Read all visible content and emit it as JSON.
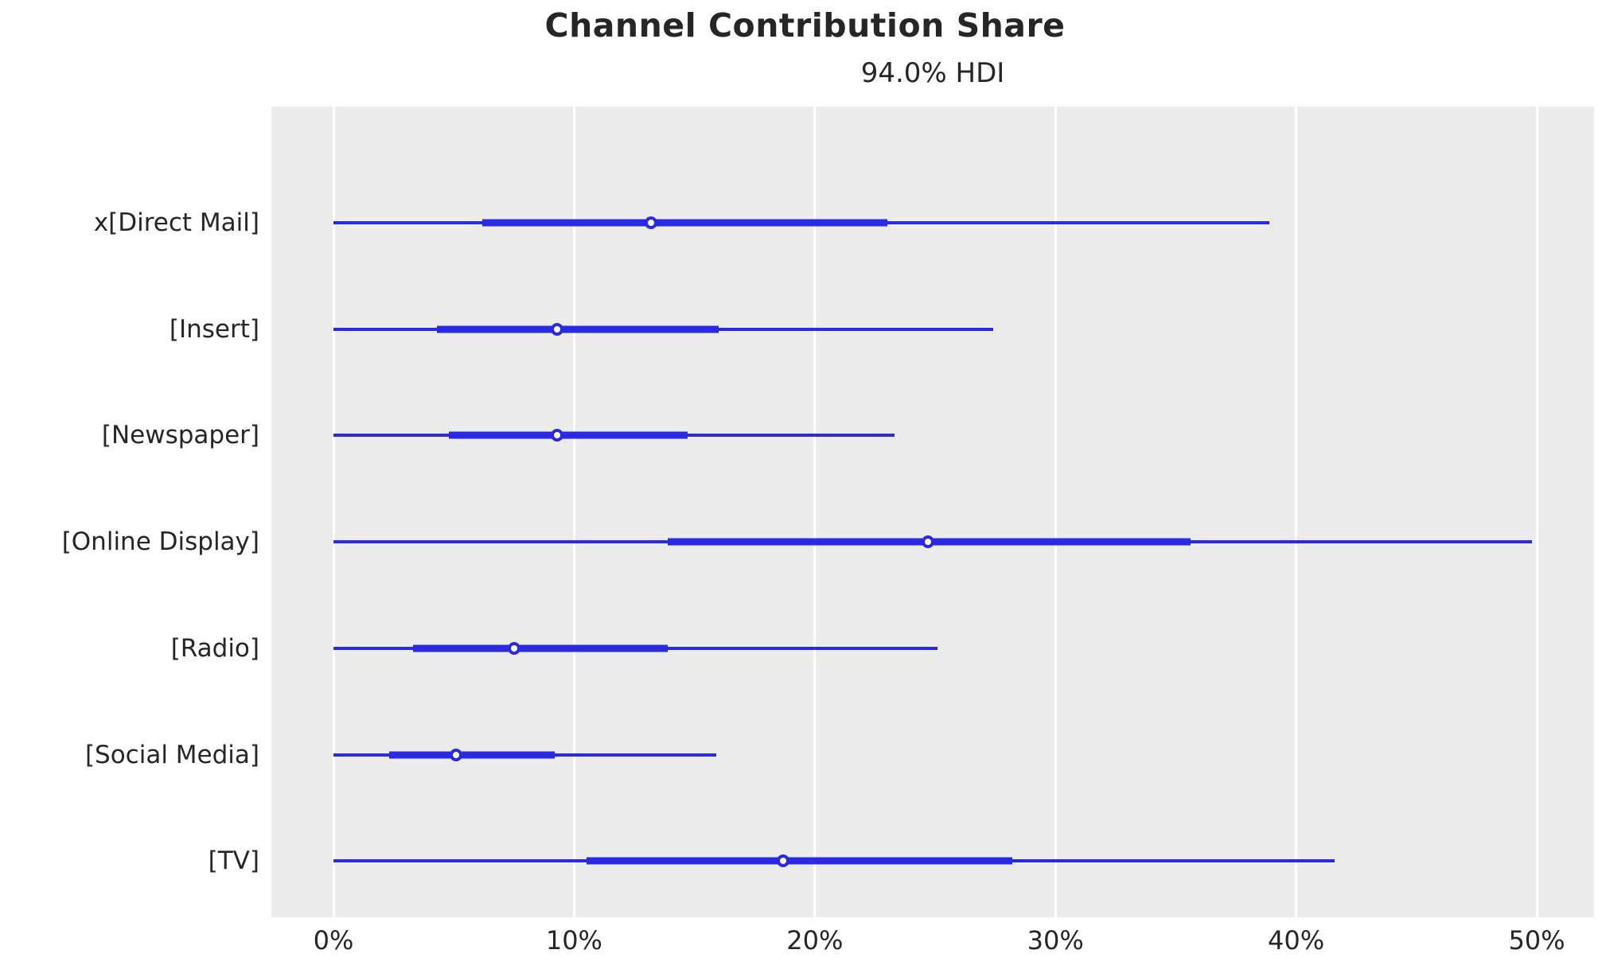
{
  "chart_data": {
    "type": "forest",
    "title": "Channel Contribution Share",
    "subtitle": "94.0% HDI",
    "legend": null,
    "grid": "vertical-white-on-gray",
    "x_axis": {
      "unit": "%",
      "tick_values": [
        0,
        10,
        20,
        30,
        40,
        50
      ],
      "tick_labels": [
        "0%",
        "10%",
        "20%",
        "30%",
        "40%",
        "50%"
      ],
      "xlim": [
        -2.6,
        52.4
      ]
    },
    "rows": [
      {
        "label": "x[Direct Mail]",
        "hdi_low": 0,
        "hdi_high": 38.9,
        "core_low": 6.2,
        "core_high": 23.0,
        "point": 13.2
      },
      {
        "label": "[Insert]",
        "hdi_low": 0,
        "hdi_high": 27.4,
        "core_low": 4.3,
        "core_high": 16.0,
        "point": 9.3
      },
      {
        "label": "[Newspaper]",
        "hdi_low": 0,
        "hdi_high": 23.3,
        "core_low": 4.8,
        "core_high": 14.7,
        "point": 9.3
      },
      {
        "label": "[Online Display]",
        "hdi_low": 0,
        "hdi_high": 49.8,
        "core_low": 13.9,
        "core_high": 35.6,
        "point": 24.7
      },
      {
        "label": "[Radio]",
        "hdi_low": 0,
        "hdi_high": 25.1,
        "core_low": 3.3,
        "core_high": 13.9,
        "point": 7.5
      },
      {
        "label": "[Social Media]",
        "hdi_low": 0,
        "hdi_high": 15.9,
        "core_low": 2.3,
        "core_high": 9.2,
        "point": 5.1
      },
      {
        "label": "[TV]",
        "hdi_low": 0,
        "hdi_high": 41.6,
        "core_low": 10.5,
        "core_high": 28.2,
        "point": 18.7
      }
    ],
    "colors": {
      "interval": "#2a2ae6",
      "point_fill": "#ffffff",
      "plot_background": "#ececec",
      "gridline": "#ffffff",
      "text": "#262626"
    }
  }
}
